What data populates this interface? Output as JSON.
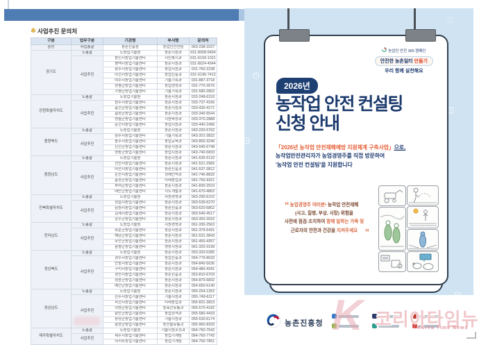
{
  "colors": {
    "top_bar": "#4f7cb2",
    "poster_background": "#cfe3f2",
    "title_navy": "#1c3a6d",
    "accent_orange": "#e65c33",
    "quote_dark": "#7d4a33",
    "quote_orange": "#d96a45",
    "watermark_pink": "#e9aab2"
  },
  "left_page": {
    "section_title": "사업추진 문의처",
    "table": {
      "headers": [
        "구분",
        "업무구분",
        "기관명",
        "부서명",
        "문의처"
      ],
      "groups": [
        {
          "region": "중앙",
          "duties": [
            {
              "duty": "사업총괄",
              "rows": [
                {
                  "org": "농촌진흥청",
                  "dept": "농업인안전팀",
                  "tel": "063-238-1027"
                }
              ]
            }
          ]
        },
        {
          "region": "경기도",
          "duties": [
            {
              "duty": "도총괄",
              "rows": [
                {
                  "org": "도농업기술원",
                  "dept": "농촌지원과",
                  "tel": "031-8008-9454"
                }
              ]
            },
            {
              "duty": "사업추진",
              "rows": [
                {
                  "org": "용인시농업기술센터",
                  "dept": "시민복지과",
                  "tel": "031-6193-1021"
                },
                {
                  "org": "평택시농업기술센터",
                  "dept": "농촌지원과",
                  "tel": "031-8024-4544"
                },
                {
                  "org": "광주시농업기술센터",
                  "dept": "농업지원과",
                  "tel": "031-760-2238"
                },
                {
                  "org": "이천시농업기술센터",
                  "dept": "농업진흥과",
                  "tel": "031-6196-7412"
                },
                {
                  "org": "여주시농업기술센터",
                  "dept": "기술기획과",
                  "tel": "031-887-3718"
                },
                {
                  "org": "양평군농업기술센터",
                  "dept": "농업경영과",
                  "tel": "031-770-3576"
                },
                {
                  "org": "가평군농업기술센터",
                  "dept": "기술기획과",
                  "tel": "031-580-2802"
                }
              ]
            }
          ]
        },
        {
          "region": "강원특별자치도",
          "duties": [
            {
              "duty": "도총괄",
              "rows": [
                {
                  "org": "도농업기술원",
                  "dept": "농촌지원과",
                  "tel": "033-248-6153"
                }
              ]
            },
            {
              "duty": "사업추진",
              "rows": [
                {
                  "org": "원주시농업기술센터",
                  "dept": "농촌지원과",
                  "tel": "033-737-4166"
                },
                {
                  "org": "홍천군농업기술센터",
                  "dept": "농촌지원과",
                  "tel": "033-430-4171"
                },
                {
                  "org": "횡성군농업기술센터",
                  "dept": "농촌지원과",
                  "tel": "033-340-5544"
                },
                {
                  "org": "영월군농업기술센터",
                  "dept": "지원육성과",
                  "tel": "033-370-2888"
                },
                {
                  "org": "춘천시농업기술센터",
                  "dept": "농업지원과",
                  "tel": "033-440-2496"
                }
              ]
            }
          ]
        },
        {
          "region": "충청북도",
          "duties": [
            {
              "duty": "도총괄",
              "rows": [
                {
                  "org": "도농업기술원",
                  "dept": "농촌지원과",
                  "tel": "043-220-5762"
                }
              ]
            },
            {
              "duty": "사업추진",
              "rows": [
                {
                  "org": "청주시농업기술센터",
                  "dept": "기술기획과",
                  "tel": "043-201-3832"
                },
                {
                  "org": "충주시농업기술센터",
                  "dept": "농업교육과",
                  "tel": "043-850-3246"
                },
                {
                  "org": "진천군농업기술센터",
                  "dept": "농촌지원과",
                  "tel": "043-540-5748"
                },
                {
                  "org": "영동군농업기술센터",
                  "dept": "농업지원과",
                  "tel": "043-740-5833"
                }
              ]
            }
          ]
        },
        {
          "region": "충청남도",
          "duties": [
            {
              "duty": "도총괄",
              "rows": [
                {
                  "org": "도농업기술원",
                  "dept": "농촌지원과",
                  "tel": "041-635-6132"
                }
              ]
            },
            {
              "duty": "사업추진",
              "rows": [
                {
                  "org": "천안시농업기술센터",
                  "dept": "농촌지원과",
                  "tel": "041-521-2965"
                },
                {
                  "org": "아산시농업기술센터",
                  "dept": "농촌진흥과",
                  "tel": "041-537-3812"
                },
                {
                  "org": "논산시농업기술센터",
                  "dept": "정예인력과",
                  "tel": "041-746-8832"
                },
                {
                  "org": "홍성군농업기술센터",
                  "dept": "미래농업과",
                  "tel": "041-750-9321"
                },
                {
                  "org": "부여군농업기술센터",
                  "dept": "농촌지원과",
                  "tel": "041-830-2523"
                },
                {
                  "org": "태안군농업기술센터",
                  "dept": "지도개발과",
                  "tel": "041-670-4802"
                }
              ]
            }
          ]
        },
        {
          "region": "전북특별자치도",
          "duties": [
            {
              "duty": "도총괄",
              "rows": [
                {
                  "org": "도농업기술원",
                  "dept": "자원경영과",
                  "tel": "063-290-6102"
                }
              ]
            },
            {
              "duty": "사업추진",
              "rows": [
                {
                  "org": "정읍시농업기술센터",
                  "dept": "농촌지원과",
                  "tel": "063-539-6270"
                },
                {
                  "org": "남원시농업기술센터",
                  "dept": "농촌진흥과",
                  "tel": "063-620-6802"
                },
                {
                  "org": "김제시농업기술센터",
                  "dept": "농촌지원과",
                  "tel": "063-540-4517"
                },
                {
                  "org": "장수군농업기술센터",
                  "dept": "농촌지원과",
                  "tel": "063-350-2632"
                }
              ]
            }
          ]
        },
        {
          "region": "전라남도",
          "duties": [
            {
              "duty": "도총괄",
              "rows": [
                {
                  "org": "도농업기술원",
                  "dept": "지원경영과",
                  "tel": "061-330-2563"
                }
              ]
            },
            {
              "duty": "사업추진",
              "rows": [
                {
                  "org": "화순군농업기술센터",
                  "dept": "농촌지원과",
                  "tel": "061-379-5431"
                },
                {
                  "org": "해남군농업기술센터",
                  "dept": "농촌지원과",
                  "tel": "061-531-3843"
                },
                {
                  "org": "무안군농업기술센터",
                  "dept": "농촌지원과",
                  "tel": "061-450-4357"
                },
                {
                  "org": "함평군농업기술센터",
                  "dept": "영농지원과",
                  "tel": "061-320-3199"
                }
              ]
            }
          ]
        },
        {
          "region": "경상북도",
          "duties": [
            {
              "duty": "도총괄",
              "rows": [
                {
                  "org": "도농업기술원",
                  "dept": "농촌지원과",
                  "tel": "053-320-0285"
                }
              ]
            },
            {
              "duty": "사업추진",
              "rows": [
                {
                  "org": "경주시농업기술센터",
                  "dept": "농업진흥과",
                  "tel": "054-779-8633"
                },
                {
                  "org": "안동시농업기술센터",
                  "dept": "농촌지원과",
                  "tel": "054-840-5636"
                },
                {
                  "org": "구미시농업기술센터",
                  "dept": "농촌지원과",
                  "tel": "054-480-4341"
                },
                {
                  "org": "경산시농업기술센터",
                  "dept": "농촌진흥과",
                  "tel": "053-810-6703"
                },
                {
                  "org": "청송군농업기술센터",
                  "dept": "농촌지원과",
                  "tel": "054-870-6832"
                },
                {
                  "org": "예천군농업기술센터",
                  "dept": "농촌지원과",
                  "tel": "054-650-6140"
                }
              ]
            }
          ]
        },
        {
          "region": "경상남도",
          "duties": [
            {
              "duty": "도총괄",
              "rows": [
                {
                  "org": "도농업기술원",
                  "dept": "농촌지원과",
                  "tel": "055-254-1352"
                }
              ]
            },
            {
              "duty": "사업추진",
              "rows": [
                {
                  "org": "진주시농업기술센터",
                  "dept": "기술지원과",
                  "tel": "055-749-6117"
                },
                {
                  "org": "사천시농업기술센터",
                  "dept": "미래농업과",
                  "tel": "055-831-3823"
                },
                {
                  "org": "의령군농업기술센터",
                  "dept": "농축산유통과",
                  "tel": "055-570-4182"
                },
                {
                  "org": "함안군농업기술센터",
                  "dept": "농업정책과",
                  "tel": "055-580-4433"
                },
                {
                  "org": "창녕군농업기술센터",
                  "dept": "기술지원과",
                  "tel": "055-530-6174"
                },
                {
                  "org": "함양군농업기술센터",
                  "dept": "농산물유통과",
                  "tel": "055-960-8333"
                }
              ]
            }
          ]
        },
        {
          "region": "제주특별자치도",
          "duties": [
            {
              "duty": "도총괄",
              "rows": [
                {
                  "org": "도농업기술원",
                  "dept": "기술지원조정과",
                  "tel": "064-760-7542"
                }
              ]
            },
            {
              "duty": "사업추진",
              "rows": [
                {
                  "org": "제주시농업기술센터",
                  "dept": "농업기계팀",
                  "tel": "064-760-7742"
                },
                {
                  "org": "서귀포농업기술센터",
                  "dept": "농업기계팀",
                  "tel": "064-760-7851"
                }
              ]
            }
          ]
        }
      ]
    }
  },
  "poster": {
    "campaign": {
      "logo_text": "농업인 안전 365 캠페인",
      "badge_blue": "안전한 농촌일터",
      "badge_red": "만들기",
      "tagline": "우리 함께 실천해요"
    },
    "year_badge": "2026년",
    "title_lines": [
      "농작업 안전 컨설팅",
      "신청 안내"
    ],
    "description": {
      "bracket": "「2026년 농작업 안전재해예방 지원체계 구축사업」",
      "suffix": "으로,",
      "line2": "농작업안전관리자가 농업경영주를 직접 방문하여",
      "line3": "'농작업 안전 컨설팅'을 지원합니다"
    },
    "quote": {
      "open_mark": "“",
      "close_mark": "”",
      "lines": [
        [
          {
            "t": "농업경영주 여러분! ",
            "c": "orange"
          },
          {
            "t": "농작업 안전재해",
            "c": "dark"
          }
        ],
        [
          {
            "t": "(사고, 질병, 부상, 사망) 위험을",
            "c": "dark"
          }
        ],
        [
          {
            "t": "사전에 점검·조치하여 ",
            "c": "dark"
          },
          {
            "t": "함께 일하는 가족 및",
            "c": "orange"
          }
        ],
        [
          {
            "t": "근로자의 안전과 건강을 ",
            "c": "dark"
          },
          {
            "t": "지켜주세요",
            "c": "orange"
          }
        ]
      ]
    },
    "illustrations": [
      "tractor-scene",
      "sprayer-scene",
      "workers-walking-scene",
      "field-sun-scene",
      "protective-suit-scene",
      "workshop-scene",
      "barn-scene"
    ],
    "footer": {
      "agency": "농촌진흥청",
      "partner_logo_colors": [
        "#3b7bc8",
        "#2b3c6b",
        "#c0392b",
        "#8db53a",
        "#2a9d8f",
        "#d9534f"
      ]
    }
  },
  "watermark": {
    "initial": "K",
    "text": "코리아타임뉴스",
    "subtext": "Korea Time News"
  }
}
